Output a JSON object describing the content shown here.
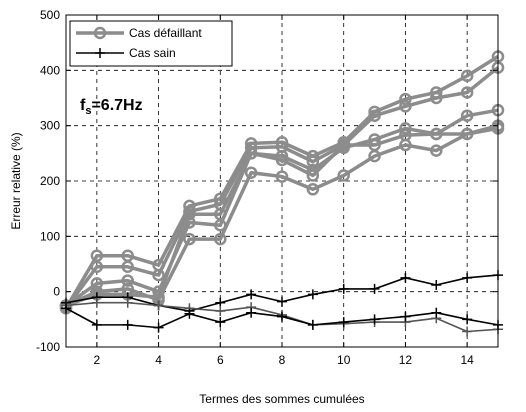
{
  "chart_data": {
    "type": "line",
    "xlabel": "Termes des sommes cumulées",
    "ylabel": "Erreur relative (%)",
    "xlim": [
      1,
      15
    ],
    "ylim": [
      -100,
      500
    ],
    "xticks": [
      2,
      4,
      6,
      8,
      10,
      12,
      14
    ],
    "yticks": [
      -100,
      0,
      100,
      200,
      300,
      400,
      500
    ],
    "grid": true,
    "legend_position": "top-left",
    "annotation": {
      "main": "f",
      "sub": "s",
      "rest": "=6.7Hz"
    },
    "x": [
      1,
      2,
      3,
      4,
      5,
      6,
      7,
      8,
      9,
      10,
      11,
      12,
      13,
      14,
      15
    ],
    "series": [
      {
        "name": "Cas défaillant",
        "color": "#8c8c8c",
        "marker": "circle",
        "legend": true,
        "values": [
          -30,
          65,
          65,
          48,
          155,
          168,
          268,
          270,
          245,
          270,
          325,
          348,
          360,
          390,
          425
        ]
      },
      {
        "color": "#8c8c8c",
        "marker": "circle",
        "values": [
          -30,
          45,
          45,
          30,
          145,
          158,
          260,
          262,
          235,
          265,
          318,
          335,
          350,
          360,
          405
        ]
      },
      {
        "color": "#8c8c8c",
        "marker": "circle",
        "values": [
          -25,
          15,
          20,
          0,
          125,
          120,
          250,
          245,
          220,
          260,
          275,
          295,
          285,
          318,
          328
        ]
      },
      {
        "color": "#8c8c8c",
        "marker": "circle",
        "values": [
          -25,
          0,
          5,
          -15,
          95,
          95,
          215,
          208,
          185,
          210,
          245,
          265,
          255,
          285,
          300
        ]
      },
      {
        "color": "#8c8c8c",
        "marker": "circle",
        "values": [
          -25,
          -5,
          -5,
          -10,
          140,
          140,
          250,
          238,
          210,
          265,
          265,
          283,
          285,
          285,
          295
        ]
      },
      {
        "name": "Cas sain",
        "color": "#000000",
        "marker": "plus",
        "legend": true,
        "values": [
          -20,
          -10,
          -10,
          -25,
          -35,
          -20,
          -5,
          -18,
          -5,
          5,
          5,
          25,
          12,
          25,
          30
        ]
      },
      {
        "color": "#555555",
        "marker": "plus",
        "values": [
          -25,
          -20,
          -20,
          -25,
          -30,
          -35,
          -28,
          -42,
          -60,
          -58,
          -55,
          -55,
          -48,
          -72,
          -68
        ]
      },
      {
        "color": "#000000",
        "marker": "plus",
        "values": [
          -30,
          -60,
          -60,
          -65,
          -40,
          -55,
          -38,
          -45,
          -60,
          -55,
          -50,
          -45,
          -38,
          -50,
          -60
        ]
      }
    ]
  }
}
